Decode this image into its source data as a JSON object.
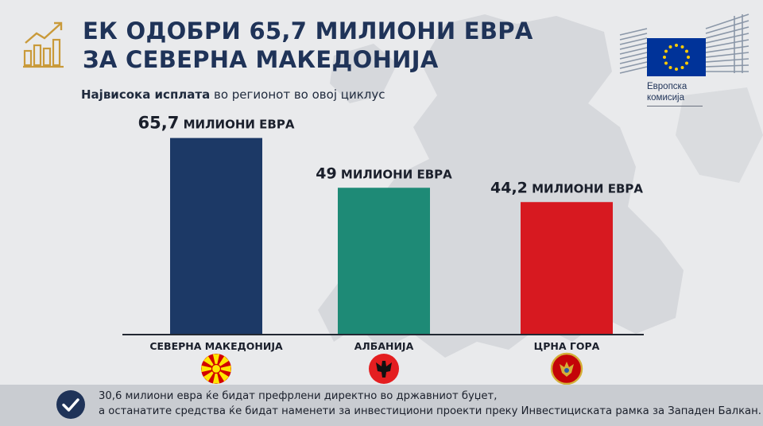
{
  "title": {
    "line1": "ЕК ОДОБРИ 65,7 МИЛИОНИ ЕВРА",
    "line2": "ЗА СЕВЕРНА МАКЕДОНИЈА"
  },
  "subtitle": {
    "bold": "Највисока исплата",
    "rest": " во регионот во овој циклус"
  },
  "logo": {
    "label_line1": "Европска",
    "label_line2": "комисија"
  },
  "colors": {
    "title": "#1f3358",
    "north_macedonia": "#1c3966",
    "albania": "#1e8a76",
    "montenegro": "#d71920",
    "accent_gold": "#c99a3a"
  },
  "chart_data": {
    "type": "bar",
    "categories": [
      "СЕВЕРНА МАКЕДОНИЈА",
      "АЛБАНИЈА",
      "ЦРНА ГОРА"
    ],
    "values": [
      65.7,
      49,
      44.2
    ],
    "value_labels": [
      {
        "number": "65,7",
        "unit": " МИЛИОНИ ЕВРА"
      },
      {
        "number": "49",
        "unit": " МИЛИОНИ ЕВРА"
      },
      {
        "number": "44,2",
        "unit": " МИЛИОНИ ЕВРА"
      }
    ],
    "bar_colors": [
      "#1c3966",
      "#1e8a76",
      "#d71920"
    ],
    "flag_icons": [
      "north-macedonia-flag-icon",
      "albania-flag-icon",
      "montenegro-flag-icon"
    ],
    "ylim": [
      0,
      80
    ],
    "grid": false,
    "legend": "none"
  },
  "footer": {
    "line1": "30,6 милиони евра ќе бидат префрлени директно во државниот буџет,",
    "line2": "а останатите средства ќе бидат наменети за инвестициони проекти преку Инвестициската рамка за Западен Балкан."
  }
}
